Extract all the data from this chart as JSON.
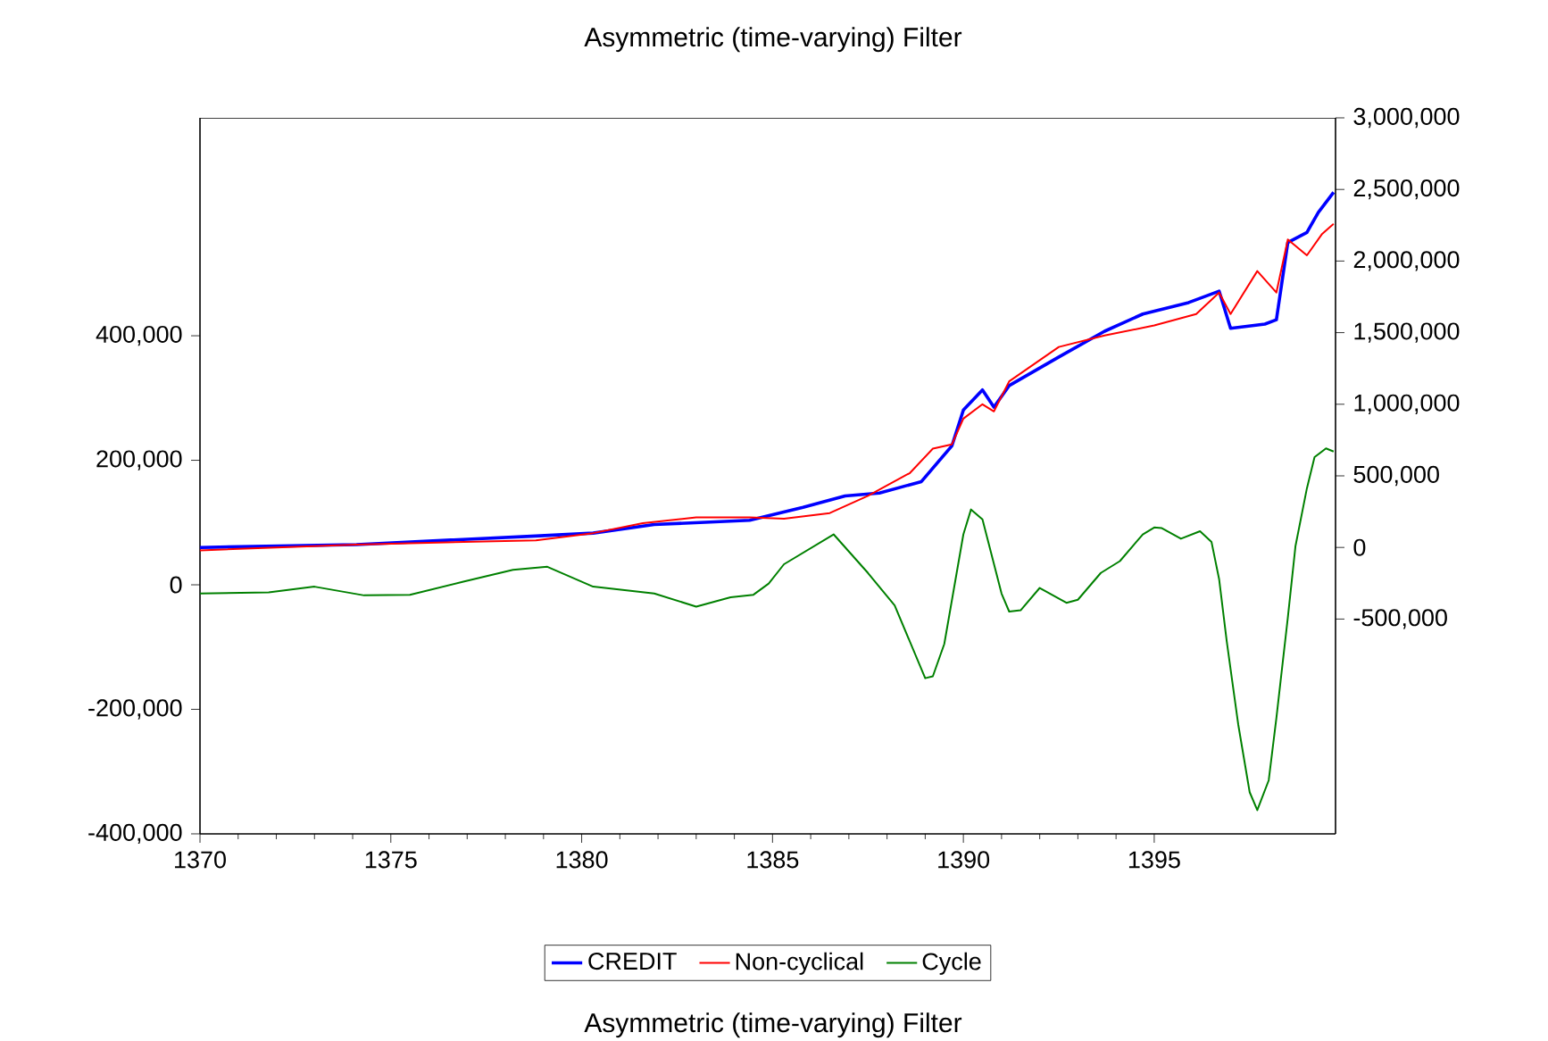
{
  "chart_data": {
    "type": "line",
    "title": "Asymmetric (time-varying) Filter",
    "annotations": [
      "Asymmetric (time-varying) Filter"
    ],
    "xlim": [
      1370,
      1399.75
    ],
    "xticks": [
      1370,
      1375,
      1380,
      1385,
      1390,
      1395
    ],
    "ylim": [
      -400000,
      750000
    ],
    "yticks": [
      {
        "value": -400000,
        "label": "-400,000"
      },
      {
        "value": -200000,
        "label": "-200,000"
      },
      0,
      {
        "value": 200000,
        "label": "200,000"
      },
      {
        "value": 400000,
        "label": "400,000"
      }
    ],
    "y2lim": [
      -2000000,
      3000000
    ],
    "y2ticks": [
      {
        "value": -500000,
        "label": "-500,000"
      },
      0,
      {
        "value": 500000,
        "label": "500,000"
      },
      {
        "value": 1000000,
        "label": "1,000,000"
      },
      {
        "value": 1500000,
        "label": "1,500,000"
      },
      {
        "value": 2000000,
        "label": "2,000,000"
      },
      {
        "value": 2500000,
        "label": "2,500,000"
      },
      {
        "value": 3000000,
        "label": "3,000,000"
      }
    ],
    "legend": "bottom",
    "grid": false,
    "marker": "none",
    "line_style": "solid",
    "series": [
      {
        "name": "CREDIT",
        "color": "#0000ff",
        "axis": "y2",
        "x": [
          1370,
          1374.1,
          1378.8,
          1380.3,
          1381.9,
          1384.4,
          1385.8,
          1386.9,
          1387.8,
          1388.9,
          1389.7,
          1390.0,
          1390.5,
          1390.8,
          1391.2,
          1392.5,
          1393.7,
          1394.7,
          1395.9,
          1396.7,
          1397.0,
          1397.9,
          1398.2,
          1398.5,
          1399.0,
          1399.3,
          1399.7
        ],
        "values": [
          0,
          20000,
          80000,
          100000,
          160000,
          190000,
          280000,
          360000,
          380000,
          460000,
          710000,
          960000,
          1100000,
          980000,
          1130000,
          1330000,
          1510000,
          1630000,
          1710000,
          1790000,
          1530000,
          1560000,
          1590000,
          2130000,
          2200000,
          2340000,
          2480000
        ]
      },
      {
        "name": "Non-cyclical",
        "color": "#ff0000",
        "axis": "y2",
        "x": [
          1370,
          1374.1,
          1378.8,
          1380.3,
          1381.6,
          1383.0,
          1384.4,
          1385.3,
          1386.5,
          1387.5,
          1388.6,
          1389.2,
          1389.7,
          1390.0,
          1390.5,
          1390.8,
          1391.2,
          1392.5,
          1393.7,
          1395.0,
          1396.1,
          1396.7,
          1397.0,
          1397.7,
          1398.2,
          1398.5,
          1399.0,
          1399.4,
          1399.7
        ],
        "values": [
          -20000,
          20000,
          50000,
          100000,
          170000,
          210000,
          210000,
          200000,
          240000,
          360000,
          520000,
          690000,
          720000,
          900000,
          1000000,
          950000,
          1160000,
          1400000,
          1480000,
          1550000,
          1630000,
          1780000,
          1630000,
          1930000,
          1780000,
          2150000,
          2040000,
          2190000,
          2260000
        ]
      },
      {
        "name": "Cycle",
        "color": "#008000",
        "axis": "y",
        "x": [
          1370,
          1371.8,
          1373.0,
          1374.3,
          1375.5,
          1376.9,
          1378.2,
          1379.1,
          1380.3,
          1381.9,
          1383.0,
          1383.9,
          1384.5,
          1384.9,
          1385.3,
          1386.6,
          1387.5,
          1388.2,
          1389.0,
          1389.2,
          1389.5,
          1390.0,
          1390.2,
          1390.5,
          1391.0,
          1391.2,
          1391.5,
          1392.0,
          1392.7,
          1393.0,
          1393.6,
          1394.1,
          1394.7,
          1395.0,
          1395.2,
          1395.7,
          1396.2,
          1396.5,
          1396.7,
          1396.9,
          1397.2,
          1397.5,
          1397.7,
          1398.0,
          1398.2,
          1398.5,
          1398.7,
          1399.0,
          1399.2,
          1399.5,
          1399.7
        ],
        "values": [
          -14000,
          -12000,
          -3000,
          -17000,
          -16000,
          5000,
          24000,
          29000,
          -3000,
          -14000,
          -35000,
          -20000,
          -16000,
          2000,
          33000,
          81000,
          19000,
          -33000,
          -150000,
          -147000,
          -95000,
          81000,
          121000,
          105000,
          -14000,
          -43000,
          -41000,
          -5000,
          -29000,
          -24000,
          19000,
          38000,
          81000,
          92000,
          91000,
          74000,
          86000,
          69000,
          9000,
          -91000,
          -224000,
          -333000,
          -362000,
          -314000,
          -214000,
          -53000,
          62000,
          155000,
          205000,
          219000,
          214000
        ]
      }
    ]
  }
}
